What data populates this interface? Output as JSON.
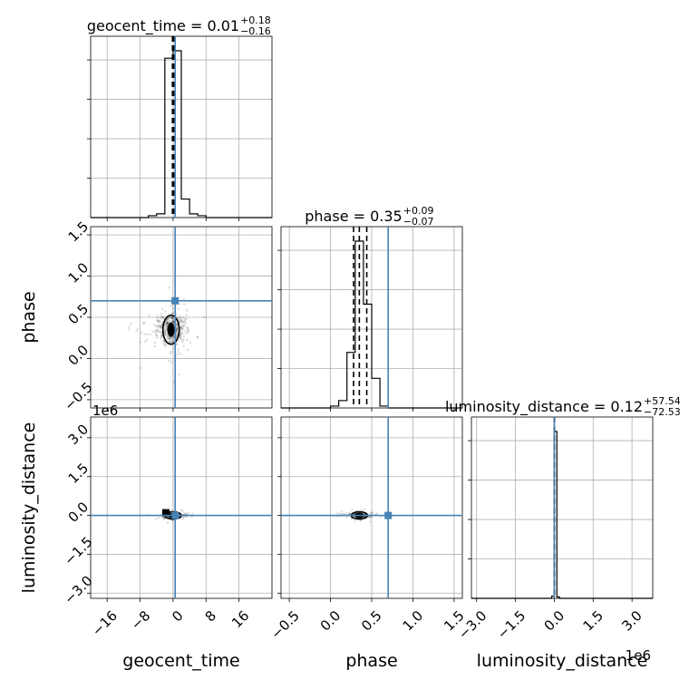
{
  "chart_data": {
    "type": "scatter",
    "kind": "corner-plot",
    "parameters": [
      "geocent_time",
      "phase",
      "luminosity_distance"
    ],
    "axis_labels": [
      "geocent_time",
      "phase",
      "luminosity_distance"
    ],
    "ranges": {
      "geocent_time": [
        -20,
        24
      ],
      "phase": [
        -0.6,
        1.6
      ],
      "luminosity_distance": [
        -3.2,
        3.8
      ]
    },
    "ticks": {
      "geocent_time": [
        "−16",
        "−8",
        "0",
        "8",
        "16"
      ],
      "phase": [
        "−0.5",
        "0.0",
        "0.5",
        "1.0",
        "1.5"
      ],
      "luminosity_distance": [
        "−3.0",
        "−1.5",
        "0.0",
        "1.5",
        "3.0"
      ]
    },
    "offset_label": "1e6",
    "truths": {
      "geocent_time": 0.5,
      "phase": 0.7,
      "luminosity_distance": 0.0
    },
    "titles": [
      {
        "param": "geocent_time",
        "text": "geocent_time = 0.01",
        "plus": "+0.18",
        "minus": "−0.16"
      },
      {
        "param": "phase",
        "text": "phase = 0.35",
        "plus": "+0.09",
        "minus": "−0.07"
      },
      {
        "param": "luminosity_distance",
        "text": "luminosity_distance = 0.12",
        "plus": "+57.54",
        "minus": "−72.53"
      }
    ],
    "histograms": {
      "geocent_time": {
        "edges": [
          -20,
          -18,
          -16,
          -14,
          -12,
          -10,
          -8,
          -6,
          -4,
          -2,
          0,
          2,
          4,
          6,
          8,
          10,
          12,
          14,
          16,
          18,
          20,
          22,
          24
        ],
        "counts": [
          0,
          0,
          0,
          0,
          0,
          0,
          0,
          0.5,
          1,
          43,
          45,
          5,
          1,
          0.5,
          0,
          0,
          0,
          0,
          0,
          0,
          0,
          0
        ],
        "quantiles": [
          -0.15,
          0.01,
          0.19
        ]
      },
      "phase": {
        "edges": [
          -0.6,
          -0.5,
          -0.4,
          -0.3,
          -0.2,
          -0.1,
          0.0,
          0.1,
          0.2,
          0.3,
          0.4,
          0.5,
          0.6,
          0.7,
          0.8,
          0.9,
          1.0,
          1.1,
          1.2,
          1.3,
          1.4,
          1.5,
          1.6
        ],
        "counts": [
          0,
          0,
          0,
          0,
          0,
          0,
          0.5,
          2,
          15,
          45,
          28,
          8,
          0.5,
          0,
          0,
          0,
          0,
          0,
          0,
          0,
          0,
          0
        ],
        "quantiles": [
          0.28,
          0.35,
          0.44
        ]
      },
      "luminosity_distance": {
        "edges": [
          -3.2,
          -0.1,
          0.0,
          0.1,
          0.2,
          3.8
        ],
        "counts": [
          0,
          0.8,
          60,
          0.5,
          0
        ],
        "quantiles": [
          -0.0001,
          0.0,
          0.0001
        ]
      }
    },
    "density_centers": {
      "geocent_time_vs_phase": [
        -0.5,
        0.35
      ],
      "geocent_time_vs_luminosity_distance": [
        0.0,
        0.0
      ],
      "phase_vs_luminosity_distance": [
        0.35,
        0.0
      ]
    }
  }
}
